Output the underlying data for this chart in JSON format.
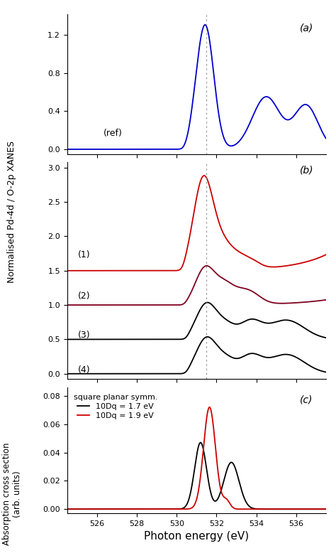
{
  "xmin": 524.5,
  "xmax": 537.5,
  "xlabel": "Photon energy (eV)",
  "ylabel_ab": "Normalised Pd-4d / O-2p XANES",
  "ylabel_c": "Absorption cross section\n(arb. units)",
  "panel_a_label": "(a)",
  "panel_b_label": "(b)",
  "panel_c_label": "(c)",
  "ref_label": "(ref)",
  "b_labels": [
    "(1)",
    "(2)",
    "(3)",
    "(4)"
  ],
  "color_blue": "#0000cc",
  "color_red": "#cc0000",
  "color_darkred": "#800020",
  "color_black": "#000000",
  "dashed_line_x": 531.5,
  "legend_title": "square planar symm.",
  "legend_line1": "10Dq = 1.7 eV",
  "legend_line2": "10Dq = 1.9 eV",
  "xticks": [
    526,
    528,
    530,
    532,
    534,
    536
  ]
}
